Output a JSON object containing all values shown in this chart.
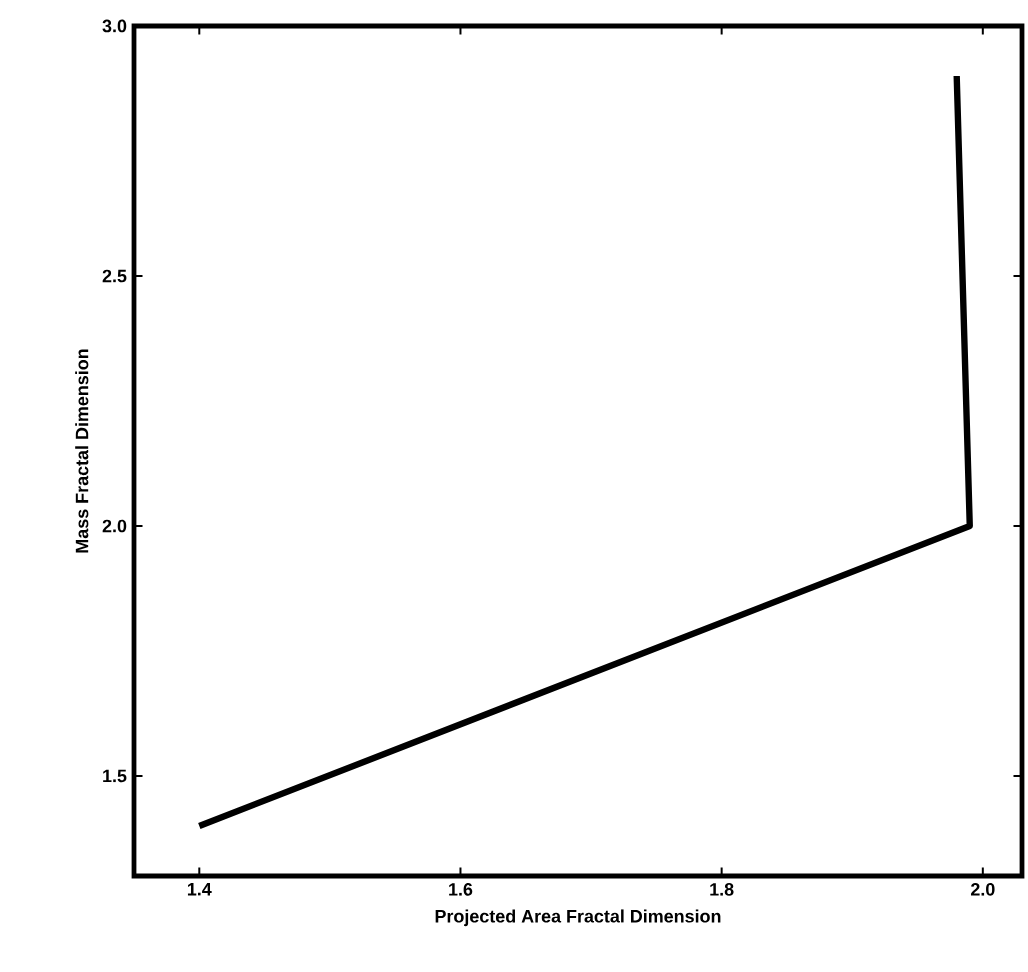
{
  "chart_data": {
    "type": "line",
    "xlabel": "Projected Area Fractal Dimension",
    "ylabel": "Mass Fractal Dimension",
    "x": [
      1.4,
      1.99,
      1.98
    ],
    "series": [
      {
        "color": "#000000",
        "values": [
          1.4,
          2.0,
          2.9
        ]
      }
    ],
    "xlim": [
      1.35,
      2.03
    ],
    "ylim": [
      1.3,
      3.0
    ],
    "xticks": [
      1.4,
      1.6,
      1.8,
      {
        "value": 2.0,
        "label": "2.0"
      }
    ],
    "yticks": [
      1.5,
      {
        "value": 2.0,
        "label": "2.0"
      },
      2.5,
      {
        "value": 3.0,
        "label": "3.0"
      }
    ],
    "grid": false,
    "marker": "none",
    "line_style": "solid"
  }
}
